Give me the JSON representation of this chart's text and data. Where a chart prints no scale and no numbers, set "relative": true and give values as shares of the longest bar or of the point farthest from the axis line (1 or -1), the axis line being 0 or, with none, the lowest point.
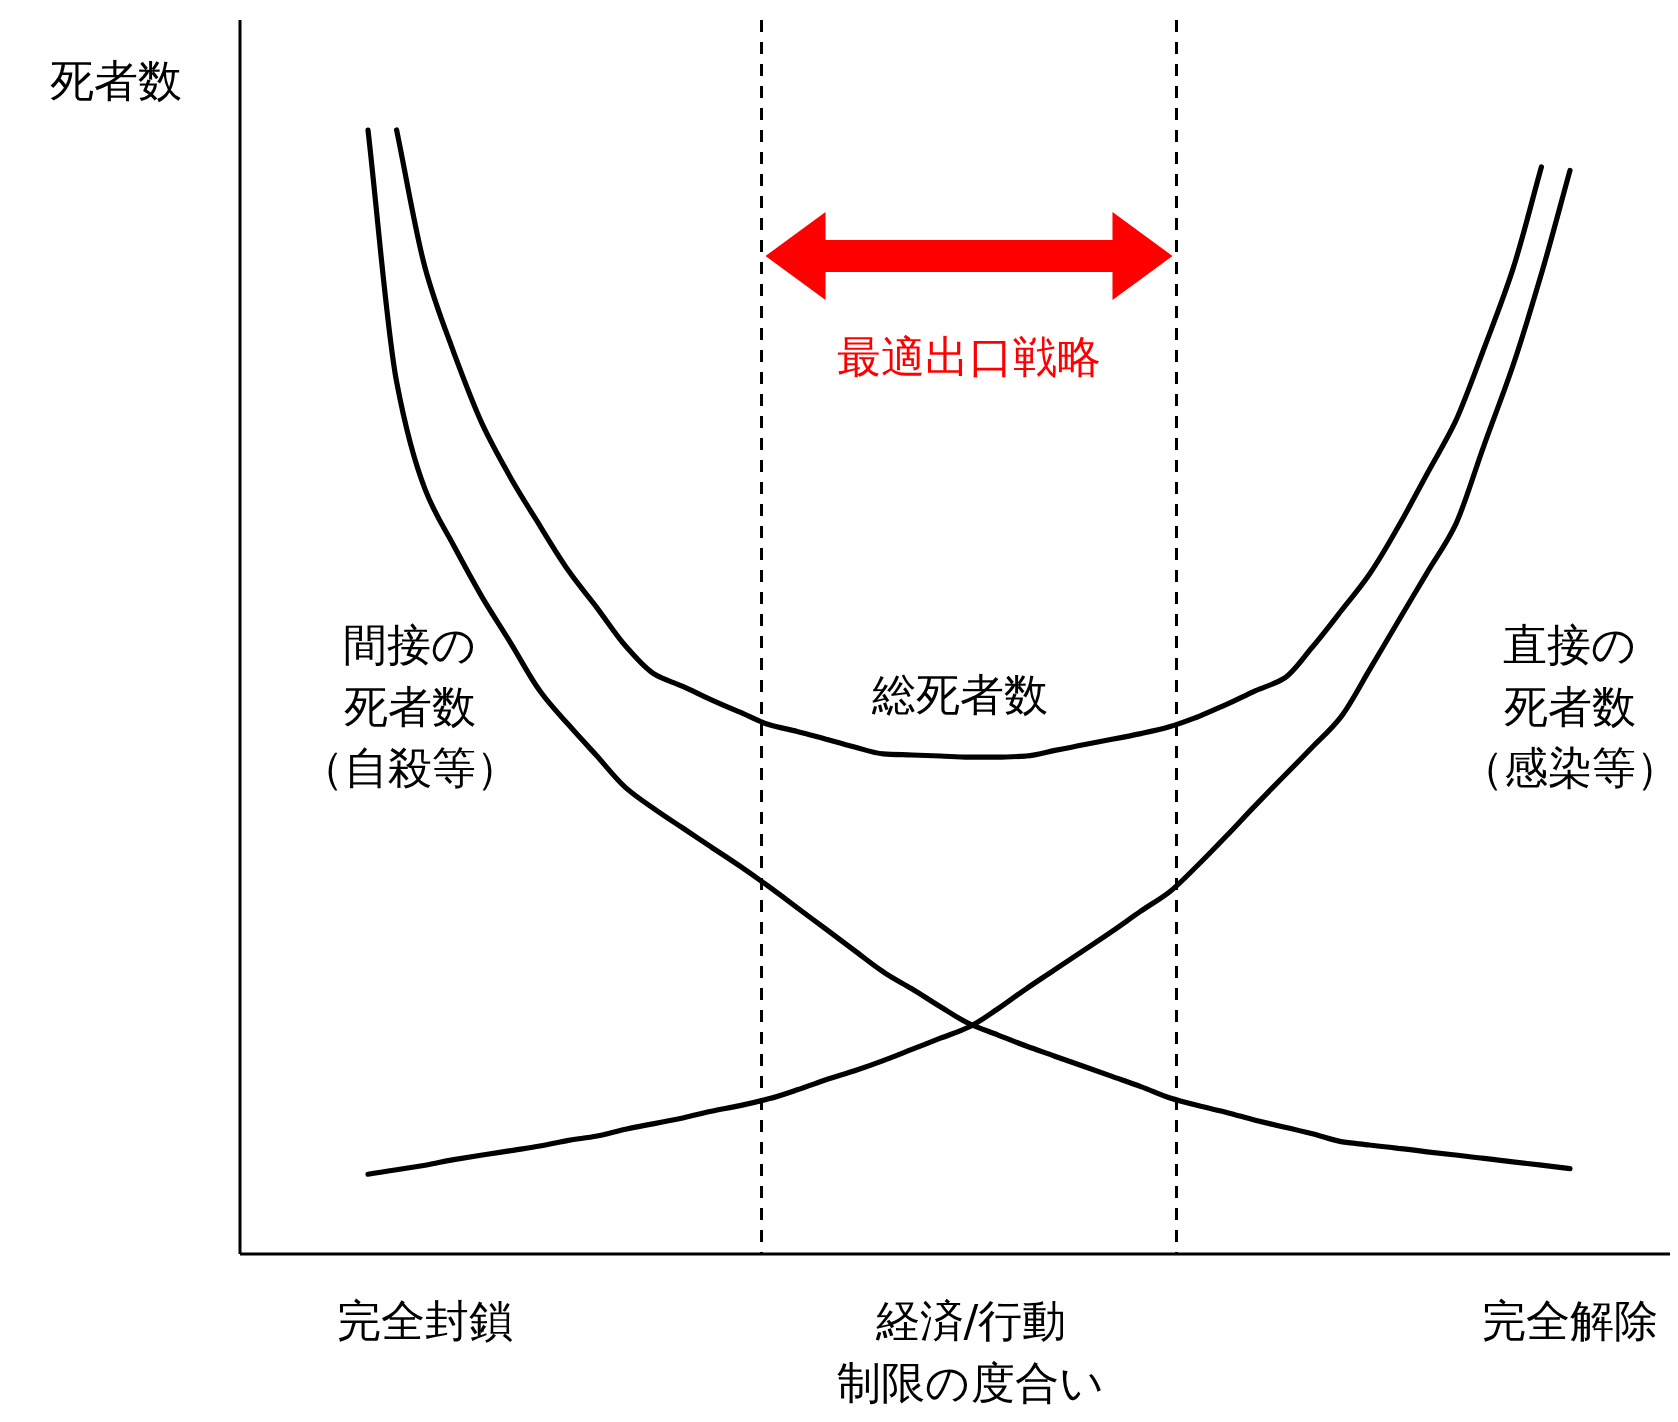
{
  "chart_data": {
    "type": "line",
    "relative": true,
    "ylabel": "死者数",
    "xlabel": "経済/行動制限の度合い",
    "categories": [
      null,
      null,
      "完全封鎖",
      null,
      null,
      null,
      null,
      null,
      null,
      null,
      null,
      null,
      null,
      null,
      null,
      null,
      null,
      null,
      null,
      null,
      null,
      null,
      null,
      null,
      null,
      null,
      null,
      null,
      null,
      null,
      null,
      null,
      null,
      null,
      null,
      null,
      null,
      null,
      null,
      null,
      null,
      null,
      "完全解除"
    ],
    "series": [
      {
        "name": "間接の死者数（自殺等）",
        "color": "#000000",
        "values": [
          1,
          0.776,
          0.68,
          0.63,
          0.584,
          0.543,
          0.501,
          0.471,
          0.443,
          0.415,
          0.396,
          0.379,
          0.362,
          0.345,
          0.327,
          0.308,
          0.289,
          0.27,
          0.251,
          0.236,
          0.22,
          0.205,
          0.195,
          0.185,
          0.176,
          0.167,
          0.158,
          0.149,
          0.139,
          0.132,
          0.126,
          0.119,
          0.113,
          0.107,
          0.1,
          0.097,
          0.094,
          0.091,
          0.088,
          0.085,
          0.082,
          0.079,
          0.076
        ]
      },
      {
        "name": "直接の死者数（感染等）",
        "color": "#000000",
        "values": [
          0.071,
          0.075,
          0.079,
          0.084,
          0.088,
          0.092,
          0.096,
          0.101,
          0.105,
          0.111,
          0.116,
          0.121,
          0.127,
          0.132,
          0.138,
          0.146,
          0.155,
          0.163,
          0.172,
          0.182,
          0.192,
          0.202,
          0.218,
          0.236,
          0.253,
          0.27,
          0.287,
          0.305,
          0.322,
          0.346,
          0.372,
          0.399,
          0.425,
          0.451,
          0.478,
          0.52,
          0.563,
          0.606,
          0.649,
          0.72,
          0.79,
          0.872,
          0.964
        ]
      },
      {
        "name": "総死者数",
        "color": "#000000",
        "values": [
          null,
          1,
          0.877,
          0.802,
          0.738,
          0.69,
          0.648,
          0.608,
          0.575,
          0.541,
          0.516,
          0.505,
          0.493,
          0.482,
          0.471,
          0.465,
          0.458,
          0.451,
          0.445,
          0.444,
          0.443,
          0.442,
          0.442,
          0.443,
          0.448,
          0.453,
          0.458,
          0.463,
          0.469,
          0.478,
          0.489,
          0.501,
          0.512,
          0.54,
          0.572,
          0.605,
          0.647,
          0.694,
          0.741,
          0.806,
          0.876,
          0.967,
          null
        ]
      }
    ],
    "annotations": [
      "最適出口戦略"
    ]
  }
}
